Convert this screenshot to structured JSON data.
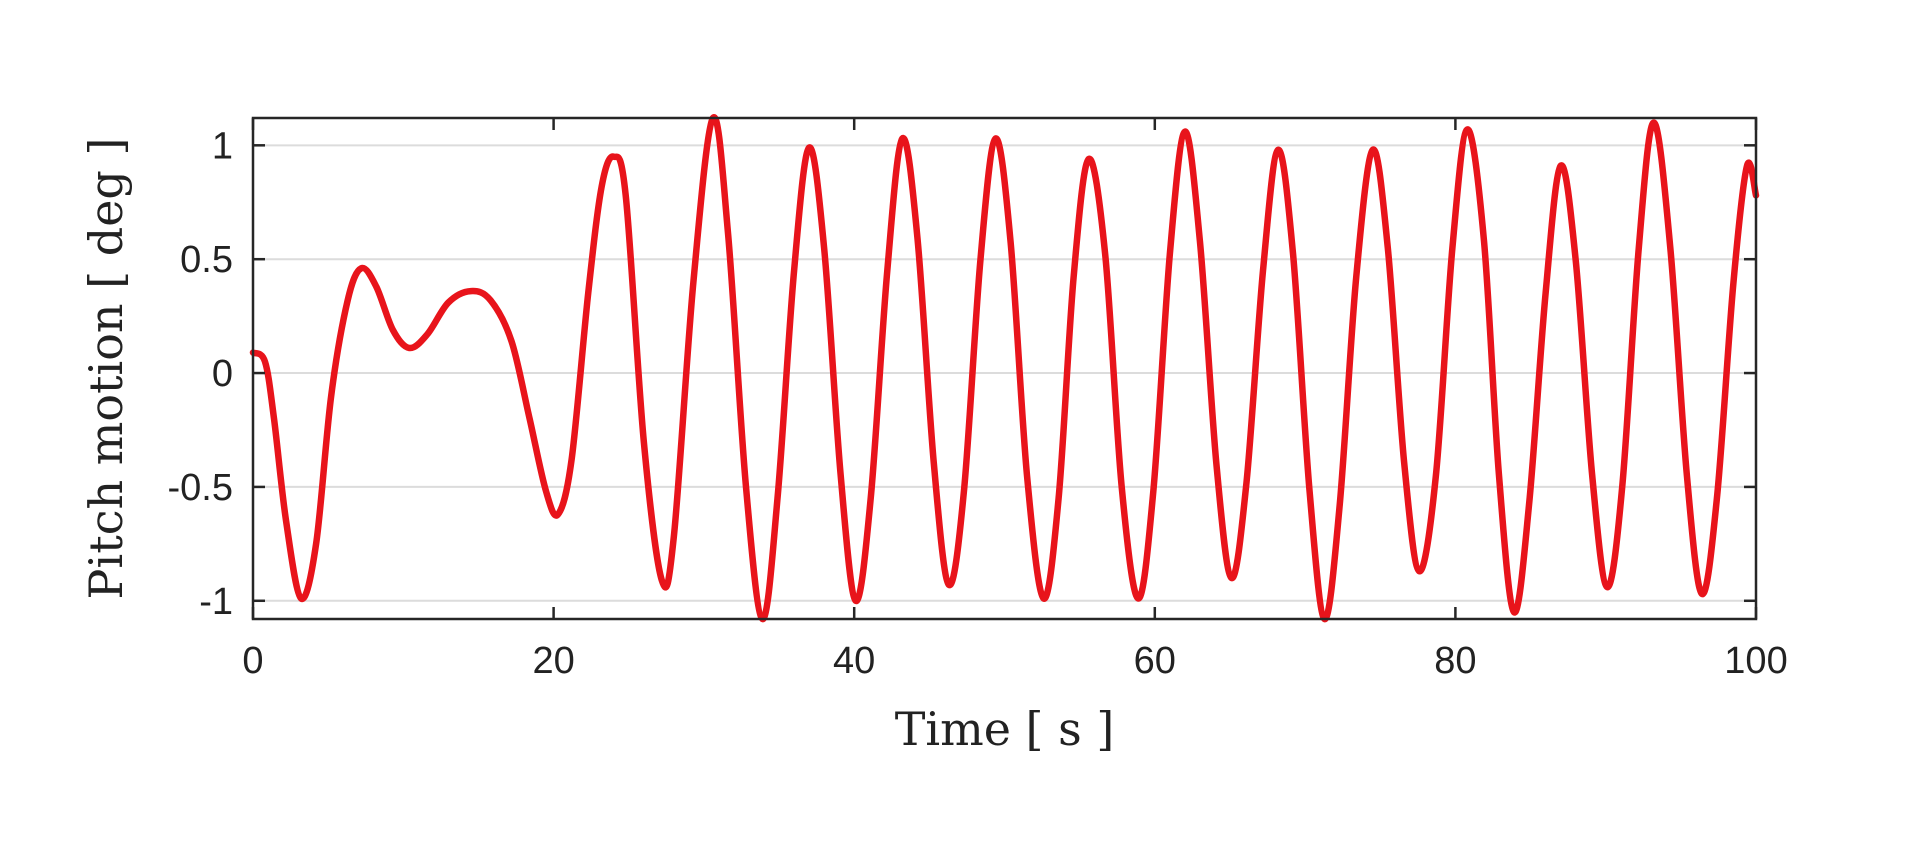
{
  "chart_data": {
    "type": "line",
    "xlabel": "Time [ s ]",
    "ylabel": "Pitch motion [ deg ]",
    "xlim": [
      0,
      100
    ],
    "ylim": [
      -1.08,
      1.12
    ],
    "xticks": [
      0,
      20,
      40,
      60,
      80,
      100
    ],
    "xtick_labels": [
      "0",
      "20",
      "40",
      "60",
      "80",
      "100"
    ],
    "yticks": [
      -1,
      -0.5,
      0,
      0.5,
      1
    ],
    "ytick_labels": [
      "-1",
      "-0.5",
      "0",
      "0.5",
      "1"
    ],
    "grid": "horizontal",
    "legend": "none",
    "series": [
      {
        "color": "#e8141b",
        "points": [
          [
            0,
            0.09
          ],
          [
            0.8,
            0.05
          ],
          [
            1.4,
            -0.2
          ],
          [
            2.2,
            -0.65
          ],
          [
            3.2,
            -0.99
          ],
          [
            4.2,
            -0.75
          ],
          [
            5.2,
            -0.1
          ],
          [
            6.3,
            0.32
          ],
          [
            7.2,
            0.46
          ],
          [
            8.2,
            0.38
          ],
          [
            9.3,
            0.19
          ],
          [
            10.4,
            0.11
          ],
          [
            11.6,
            0.17
          ],
          [
            13.0,
            0.31
          ],
          [
            14.5,
            0.36
          ],
          [
            15.8,
            0.32
          ],
          [
            17.2,
            0.14
          ],
          [
            18.4,
            -0.2
          ],
          [
            19.5,
            -0.52
          ],
          [
            20.3,
            -0.62
          ],
          [
            21.2,
            -0.38
          ],
          [
            22.3,
            0.35
          ],
          [
            23.2,
            0.82
          ],
          [
            24.0,
            0.95
          ],
          [
            24.8,
            0.78
          ],
          [
            26.0,
            -0.3
          ],
          [
            27.2,
            -0.91
          ],
          [
            28.0,
            -0.72
          ],
          [
            29.3,
            0.4
          ],
          [
            30.6,
            1.12
          ],
          [
            31.6,
            0.62
          ],
          [
            32.8,
            -0.5
          ],
          [
            33.9,
            -1.08
          ],
          [
            34.9,
            -0.55
          ],
          [
            36.0,
            0.45
          ],
          [
            37.0,
            0.99
          ],
          [
            38.0,
            0.55
          ],
          [
            39.1,
            -0.45
          ],
          [
            40.1,
            -1.0
          ],
          [
            41.1,
            -0.55
          ],
          [
            42.2,
            0.45
          ],
          [
            43.2,
            1.03
          ],
          [
            44.2,
            0.6
          ],
          [
            45.3,
            -0.4
          ],
          [
            46.3,
            -0.93
          ],
          [
            47.3,
            -0.52
          ],
          [
            48.4,
            0.5
          ],
          [
            49.4,
            1.03
          ],
          [
            50.4,
            0.58
          ],
          [
            51.5,
            -0.45
          ],
          [
            52.6,
            -0.99
          ],
          [
            53.6,
            -0.55
          ],
          [
            54.6,
            0.42
          ],
          [
            55.6,
            0.94
          ],
          [
            56.7,
            0.52
          ],
          [
            57.8,
            -0.5
          ],
          [
            58.9,
            -0.99
          ],
          [
            59.9,
            -0.52
          ],
          [
            61.0,
            0.52
          ],
          [
            62.0,
            1.06
          ],
          [
            63.0,
            0.58
          ],
          [
            64.1,
            -0.4
          ],
          [
            65.1,
            -0.9
          ],
          [
            66.1,
            -0.48
          ],
          [
            67.2,
            0.45
          ],
          [
            68.2,
            0.98
          ],
          [
            69.2,
            0.52
          ],
          [
            70.3,
            -0.52
          ],
          [
            71.3,
            -1.08
          ],
          [
            72.3,
            -0.58
          ],
          [
            73.4,
            0.42
          ],
          [
            74.5,
            0.98
          ],
          [
            75.5,
            0.55
          ],
          [
            76.6,
            -0.4
          ],
          [
            77.6,
            -0.87
          ],
          [
            78.7,
            -0.45
          ],
          [
            79.8,
            0.55
          ],
          [
            80.8,
            1.07
          ],
          [
            81.9,
            0.58
          ],
          [
            82.9,
            -0.45
          ],
          [
            83.9,
            -1.05
          ],
          [
            84.9,
            -0.58
          ],
          [
            86.0,
            0.35
          ],
          [
            87.0,
            0.91
          ],
          [
            88.0,
            0.5
          ],
          [
            89.1,
            -0.45
          ],
          [
            90.1,
            -0.94
          ],
          [
            91.1,
            -0.5
          ],
          [
            92.2,
            0.55
          ],
          [
            93.2,
            1.1
          ],
          [
            94.3,
            0.55
          ],
          [
            95.4,
            -0.45
          ],
          [
            96.4,
            -0.97
          ],
          [
            97.4,
            -0.55
          ],
          [
            98.5,
            0.4
          ],
          [
            99.4,
            0.91
          ],
          [
            100,
            0.78
          ]
        ]
      }
    ]
  }
}
